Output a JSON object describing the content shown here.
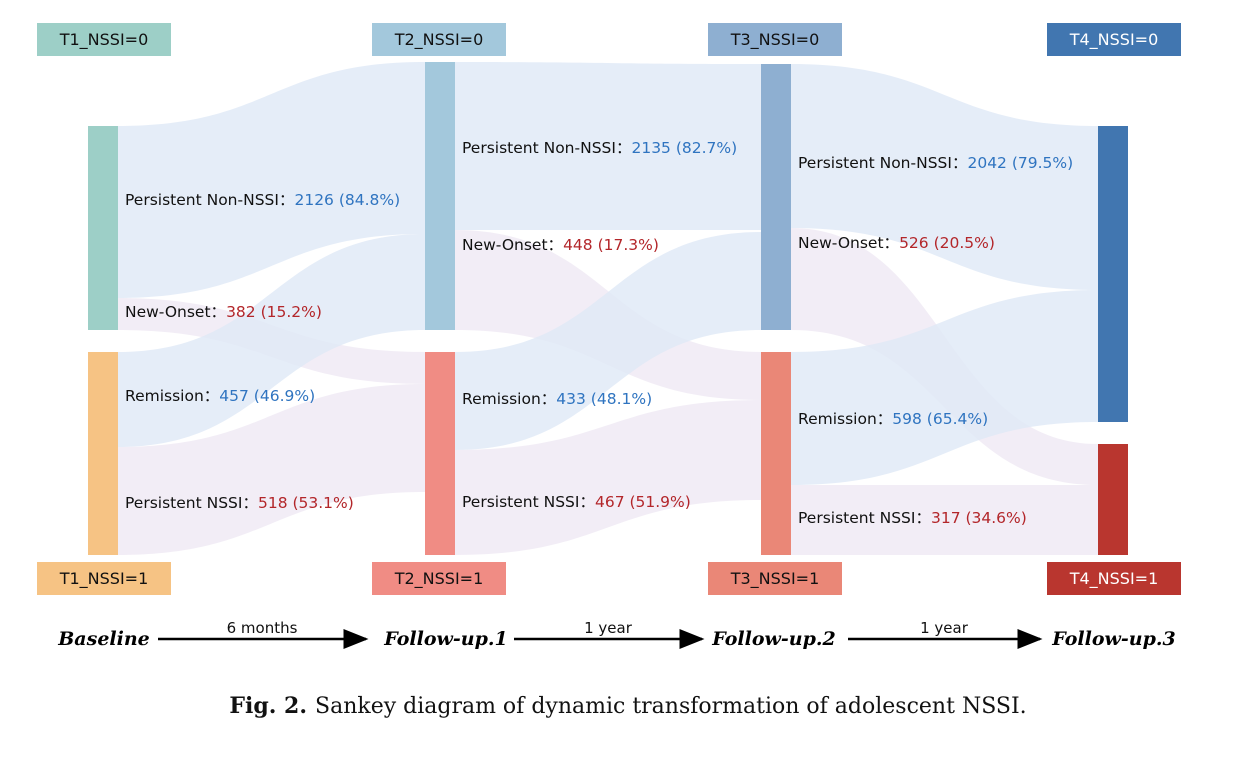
{
  "colors": {
    "flow_blue": "#dfe8f6",
    "flow_pink": "#efe9f4",
    "label_blue": "#2f74c0",
    "label_red": "#b3262a"
  },
  "nodes": [
    {
      "id": "T1_0",
      "label": "T1_NSSI=0",
      "color": "#9dcfc7",
      "text": "#111"
    },
    {
      "id": "T1_1",
      "label": "T1_NSSI=1",
      "color": "#f6c384",
      "text": "#111"
    },
    {
      "id": "T2_0",
      "label": "T2_NSSI=0",
      "color": "#a3c8dc",
      "text": "#111"
    },
    {
      "id": "T2_1",
      "label": "T2_NSSI=1",
      "color": "#f08c84",
      "text": "#111"
    },
    {
      "id": "T3_0",
      "label": "T3_NSSI=0",
      "color": "#8eafd1",
      "text": "#111"
    },
    {
      "id": "T3_1",
      "label": "T3_NSSI=1",
      "color": "#ea8777",
      "text": "#111"
    },
    {
      "id": "T4_0",
      "label": "T4_NSSI=0",
      "color": "#4176b0",
      "text": "#fff"
    },
    {
      "id": "T4_1",
      "label": "T4_NSSI=1",
      "color": "#b9362f",
      "text": "#fff"
    }
  ],
  "flows": [
    {
      "from": "T1_0",
      "to": "T2_0",
      "label": "Persistent Non-NSSI",
      "sep": "：",
      "value": "2126 (84.8%)",
      "tone": "blue"
    },
    {
      "from": "T1_0",
      "to": "T2_1",
      "label": "New-Onset",
      "sep": "：",
      "value": "382 (15.2%)",
      "tone": "red"
    },
    {
      "from": "T1_1",
      "to": "T2_0",
      "label": "Remission",
      "sep": "：",
      "value": "457 (46.9%)",
      "tone": "blue"
    },
    {
      "from": "T1_1",
      "to": "T2_1",
      "label": "Persistent NSSI",
      "sep": "：",
      "value": "518 (53.1%)",
      "tone": "red"
    },
    {
      "from": "T2_0",
      "to": "T3_0",
      "label": "Persistent Non-NSSI",
      "sep": "：",
      "value": "2135 (82.7%)",
      "tone": "blue"
    },
    {
      "from": "T2_0",
      "to": "T3_1",
      "label": "New-Onset",
      "sep": "：",
      "value": "448 (17.3%)",
      "tone": "red"
    },
    {
      "from": "T2_1",
      "to": "T3_0",
      "label": "Remission",
      "sep": "：",
      "value": "433 (48.1%)",
      "tone": "blue"
    },
    {
      "from": "T2_1",
      "to": "T3_1",
      "label": "Persistent NSSI",
      "sep": "：",
      "value": "467 (51.9%)",
      "tone": "red"
    },
    {
      "from": "T3_0",
      "to": "T4_0",
      "label": "Persistent Non-NSSI",
      "sep": "：",
      "value": "2042 (79.5%)",
      "tone": "blue"
    },
    {
      "from": "T3_0",
      "to": "T4_1",
      "label": "New-Onset",
      "sep": "：",
      "value": "526 (20.5%)",
      "tone": "red"
    },
    {
      "from": "T3_1",
      "to": "T4_0",
      "label": "Remission",
      "sep": "：",
      "value": "598 (65.4%)",
      "tone": "blue"
    },
    {
      "from": "T3_1",
      "to": "T4_1",
      "label": "Persistent NSSI",
      "sep": "：",
      "value": "317 (34.6%)",
      "tone": "red"
    }
  ],
  "timeline": {
    "points": [
      "Baseline",
      "Follow-up.1",
      "Follow-up.2",
      "Follow-up.3"
    ],
    "intervals": [
      "6 months",
      "1 year",
      "1 year"
    ]
  },
  "caption": {
    "prefix": "Fig. 2.",
    "text": "Sankey diagram of dynamic transformation of adolescent NSSI."
  }
}
